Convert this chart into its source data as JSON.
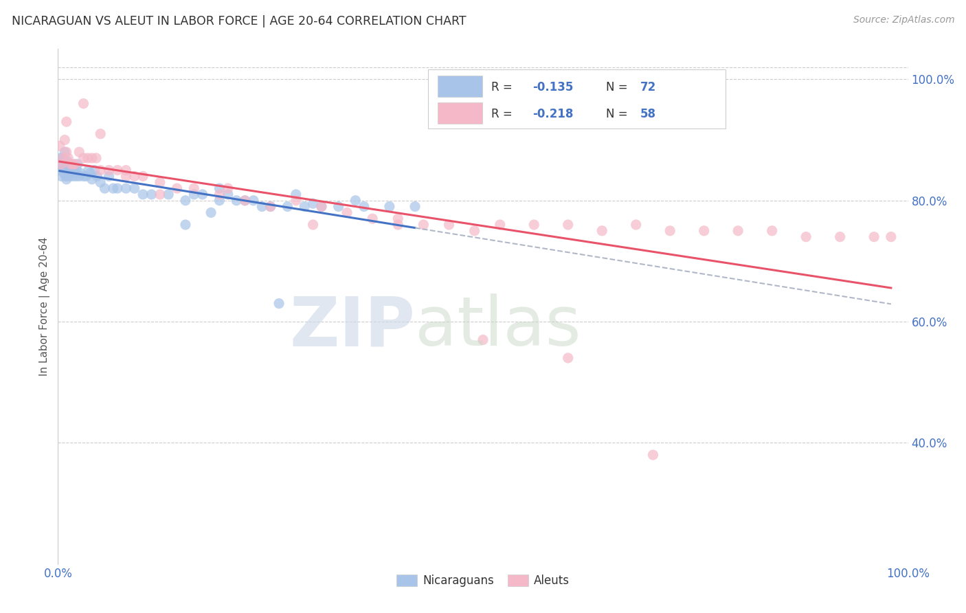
{
  "title": "NICARAGUAN VS ALEUT IN LABOR FORCE | AGE 20-64 CORRELATION CHART",
  "source": "Source: ZipAtlas.com",
  "ylabel": "In Labor Force | Age 20-64",
  "xlim": [
    0.0,
    1.0
  ],
  "ylim": [
    0.2,
    1.05
  ],
  "ytick_labels": [
    "40.0%",
    "60.0%",
    "80.0%",
    "100.0%"
  ],
  "ytick_positions": [
    0.4,
    0.6,
    0.8,
    1.0
  ],
  "blue_color": "#a8c4e8",
  "pink_color": "#f4b8c8",
  "trend_blue": "#4472c4",
  "trend_pink": "#e8536a",
  "trend_dashed_color": "#b0b8c8",
  "grid_color": "#cccccc",
  "label_color": "#4472c4",
  "title_color": "#333333",
  "source_color": "#999999",
  "watermark_zip_color": "#ccd8e8",
  "watermark_atlas_color": "#c8d8c8",
  "nicaraguan_x": [
    0.002,
    0.003,
    0.004,
    0.005,
    0.006,
    0.006,
    0.007,
    0.007,
    0.008,
    0.008,
    0.009,
    0.009,
    0.01,
    0.01,
    0.011,
    0.011,
    0.012,
    0.013,
    0.013,
    0.014,
    0.015,
    0.016,
    0.017,
    0.018,
    0.019,
    0.02,
    0.021,
    0.022,
    0.023,
    0.025,
    0.027,
    0.03,
    0.033,
    0.036,
    0.038,
    0.04,
    0.043,
    0.046,
    0.05,
    0.055,
    0.06,
    0.065,
    0.07,
    0.08,
    0.09,
    0.1,
    0.11,
    0.13,
    0.15,
    0.17,
    0.19,
    0.21,
    0.23,
    0.25,
    0.27,
    0.29,
    0.31,
    0.33,
    0.36,
    0.39,
    0.42,
    0.15,
    0.26,
    0.3,
    0.28,
    0.19,
    0.24,
    0.35,
    0.16,
    0.22,
    0.18,
    0.2
  ],
  "nicaraguan_y": [
    0.85,
    0.87,
    0.84,
    0.86,
    0.87,
    0.855,
    0.845,
    0.865,
    0.88,
    0.85,
    0.84,
    0.855,
    0.835,
    0.86,
    0.845,
    0.865,
    0.855,
    0.84,
    0.85,
    0.845,
    0.86,
    0.85,
    0.84,
    0.855,
    0.85,
    0.845,
    0.84,
    0.85,
    0.86,
    0.84,
    0.845,
    0.84,
    0.84,
    0.85,
    0.845,
    0.835,
    0.85,
    0.84,
    0.83,
    0.82,
    0.84,
    0.82,
    0.82,
    0.82,
    0.82,
    0.81,
    0.81,
    0.81,
    0.8,
    0.81,
    0.8,
    0.8,
    0.8,
    0.79,
    0.79,
    0.79,
    0.79,
    0.79,
    0.79,
    0.79,
    0.79,
    0.76,
    0.63,
    0.795,
    0.81,
    0.82,
    0.79,
    0.8,
    0.81,
    0.8,
    0.78,
    0.81
  ],
  "aleut_x": [
    0.002,
    0.004,
    0.006,
    0.008,
    0.01,
    0.012,
    0.015,
    0.018,
    0.02,
    0.025,
    0.03,
    0.035,
    0.04,
    0.045,
    0.05,
    0.06,
    0.07,
    0.08,
    0.09,
    0.1,
    0.12,
    0.14,
    0.16,
    0.19,
    0.22,
    0.25,
    0.28,
    0.31,
    0.34,
    0.37,
    0.4,
    0.43,
    0.46,
    0.49,
    0.52,
    0.56,
    0.6,
    0.64,
    0.68,
    0.72,
    0.76,
    0.8,
    0.84,
    0.88,
    0.92,
    0.96,
    0.01,
    0.03,
    0.05,
    0.08,
    0.12,
    0.2,
    0.3,
    0.4,
    0.5,
    0.6,
    0.7,
    0.98
  ],
  "aleut_y": [
    0.89,
    0.86,
    0.87,
    0.9,
    0.88,
    0.87,
    0.86,
    0.86,
    0.86,
    0.88,
    0.87,
    0.87,
    0.87,
    0.87,
    0.85,
    0.85,
    0.85,
    0.84,
    0.84,
    0.84,
    0.81,
    0.82,
    0.82,
    0.81,
    0.8,
    0.79,
    0.8,
    0.79,
    0.78,
    0.77,
    0.77,
    0.76,
    0.76,
    0.75,
    0.76,
    0.76,
    0.76,
    0.75,
    0.76,
    0.75,
    0.75,
    0.75,
    0.75,
    0.74,
    0.74,
    0.74,
    0.93,
    0.96,
    0.91,
    0.85,
    0.83,
    0.82,
    0.76,
    0.76,
    0.57,
    0.54,
    0.38,
    0.74
  ]
}
